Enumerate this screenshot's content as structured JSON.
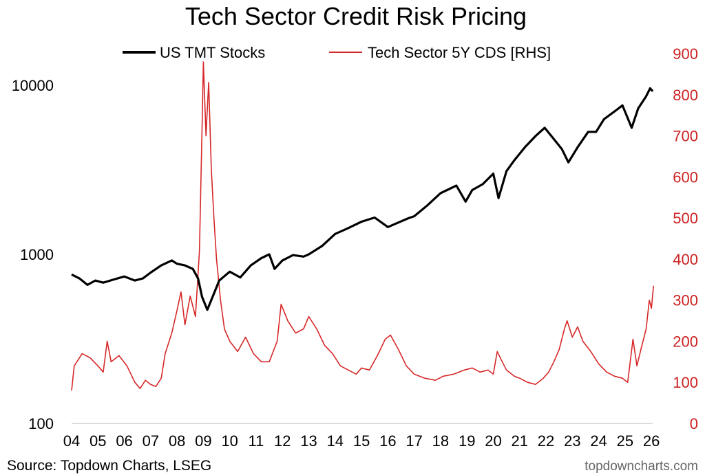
{
  "chart_data": {
    "type": "line",
    "title": "Tech Sector Credit Risk Pricing",
    "source": "Source: Topdown Charts, LSEG",
    "watermark": "topdowncharts.com",
    "x_range": [
      2004.0,
      2026.1
    ],
    "x_ticks": [
      {
        "value": 2004,
        "label": "04"
      },
      {
        "value": 2005,
        "label": "05"
      },
      {
        "value": 2006,
        "label": "06"
      },
      {
        "value": 2007,
        "label": "07"
      },
      {
        "value": 2008,
        "label": "08"
      },
      {
        "value": 2009,
        "label": "09"
      },
      {
        "value": 2010,
        "label": "10"
      },
      {
        "value": 2011,
        "label": "11"
      },
      {
        "value": 2012,
        "label": "12"
      },
      {
        "value": 2013,
        "label": "13"
      },
      {
        "value": 2014,
        "label": "14"
      },
      {
        "value": 2015,
        "label": "15"
      },
      {
        "value": 2016,
        "label": "16"
      },
      {
        "value": 2017,
        "label": "17"
      },
      {
        "value": 2018,
        "label": "18"
      },
      {
        "value": 2019,
        "label": "19"
      },
      {
        "value": 2020,
        "label": "20"
      },
      {
        "value": 2021,
        "label": "21"
      },
      {
        "value": 2022,
        "label": "22"
      },
      {
        "value": 2023,
        "label": "23"
      },
      {
        "value": 2024,
        "label": "24"
      },
      {
        "value": 2025,
        "label": "25"
      },
      {
        "value": 2026,
        "label": "26"
      }
    ],
    "y_left": {
      "scale": "log",
      "range": [
        100,
        18000
      ],
      "ticks": [
        {
          "value": 100,
          "label": "100"
        },
        {
          "value": 1000,
          "label": "1000"
        },
        {
          "value": 10000,
          "label": "10000"
        }
      ]
    },
    "y_right": {
      "scale": "linear",
      "range": [
        0,
        900
      ],
      "ticks": [
        {
          "value": 0,
          "label": "0"
        },
        {
          "value": 100,
          "label": "100"
        },
        {
          "value": 200,
          "label": "200"
        },
        {
          "value": 300,
          "label": "300"
        },
        {
          "value": 400,
          "label": "400"
        },
        {
          "value": 500,
          "label": "500"
        },
        {
          "value": 600,
          "label": "600"
        },
        {
          "value": 700,
          "label": "700"
        },
        {
          "value": 800,
          "label": "800"
        },
        {
          "value": 900,
          "label": "900"
        }
      ]
    },
    "series": [
      {
        "name": "US TMT Stocks",
        "axis": "left",
        "color": "#000000",
        "points": [
          [
            2004.0,
            760
          ],
          [
            2004.3,
            720
          ],
          [
            2004.6,
            660
          ],
          [
            2004.9,
            700
          ],
          [
            2005.2,
            680
          ],
          [
            2005.6,
            710
          ],
          [
            2006.0,
            740
          ],
          [
            2006.4,
            700
          ],
          [
            2006.7,
            720
          ],
          [
            2007.0,
            780
          ],
          [
            2007.4,
            860
          ],
          [
            2007.8,
            920
          ],
          [
            2008.0,
            880
          ],
          [
            2008.3,
            860
          ],
          [
            2008.6,
            820
          ],
          [
            2008.8,
            720
          ],
          [
            2008.95,
            560
          ],
          [
            2009.15,
            470
          ],
          [
            2009.35,
            560
          ],
          [
            2009.6,
            700
          ],
          [
            2010.0,
            790
          ],
          [
            2010.4,
            730
          ],
          [
            2010.8,
            860
          ],
          [
            2011.2,
            950
          ],
          [
            2011.5,
            1000
          ],
          [
            2011.7,
            820
          ],
          [
            2012.0,
            920
          ],
          [
            2012.4,
            990
          ],
          [
            2012.8,
            970
          ],
          [
            2013.0,
            1000
          ],
          [
            2013.5,
            1120
          ],
          [
            2014.0,
            1320
          ],
          [
            2014.5,
            1430
          ],
          [
            2015.0,
            1560
          ],
          [
            2015.5,
            1650
          ],
          [
            2016.0,
            1450
          ],
          [
            2016.3,
            1520
          ],
          [
            2016.8,
            1640
          ],
          [
            2017.0,
            1680
          ],
          [
            2017.5,
            1950
          ],
          [
            2018.0,
            2300
          ],
          [
            2018.6,
            2550
          ],
          [
            2018.95,
            2050
          ],
          [
            2019.2,
            2400
          ],
          [
            2019.6,
            2600
          ],
          [
            2020.0,
            3000
          ],
          [
            2020.2,
            2150
          ],
          [
            2020.5,
            3100
          ],
          [
            2020.8,
            3600
          ],
          [
            2021.2,
            4300
          ],
          [
            2021.6,
            5000
          ],
          [
            2021.95,
            5600
          ],
          [
            2022.3,
            4800
          ],
          [
            2022.6,
            4200
          ],
          [
            2022.85,
            3500
          ],
          [
            2023.2,
            4300
          ],
          [
            2023.6,
            5300
          ],
          [
            2023.9,
            5300
          ],
          [
            2024.2,
            6300
          ],
          [
            2024.6,
            7000
          ],
          [
            2024.9,
            7600
          ],
          [
            2025.25,
            5600
          ],
          [
            2025.5,
            7300
          ],
          [
            2025.8,
            8600
          ],
          [
            2025.95,
            9600
          ],
          [
            2026.05,
            9200
          ]
        ]
      },
      {
        "name": "Tech Sector 5Y CDS [RHS]",
        "axis": "right",
        "color": "#d62728",
        "points": [
          [
            2004.0,
            80
          ],
          [
            2004.1,
            140
          ],
          [
            2004.4,
            170
          ],
          [
            2004.7,
            160
          ],
          [
            2005.0,
            140
          ],
          [
            2005.2,
            125
          ],
          [
            2005.35,
            200
          ],
          [
            2005.5,
            150
          ],
          [
            2005.8,
            165
          ],
          [
            2006.1,
            140
          ],
          [
            2006.4,
            100
          ],
          [
            2006.6,
            85
          ],
          [
            2006.8,
            105
          ],
          [
            2007.0,
            95
          ],
          [
            2007.2,
            90
          ],
          [
            2007.4,
            110
          ],
          [
            2007.55,
            170
          ],
          [
            2007.8,
            220
          ],
          [
            2008.0,
            275
          ],
          [
            2008.15,
            320
          ],
          [
            2008.3,
            240
          ],
          [
            2008.5,
            310
          ],
          [
            2008.7,
            260
          ],
          [
            2008.85,
            420
          ],
          [
            2008.95,
            720
          ],
          [
            2009.0,
            880
          ],
          [
            2009.1,
            700
          ],
          [
            2009.2,
            830
          ],
          [
            2009.3,
            620
          ],
          [
            2009.4,
            500
          ],
          [
            2009.5,
            400
          ],
          [
            2009.65,
            300
          ],
          [
            2009.8,
            230
          ],
          [
            2010.0,
            200
          ],
          [
            2010.3,
            175
          ],
          [
            2010.6,
            210
          ],
          [
            2010.9,
            170
          ],
          [
            2011.2,
            150
          ],
          [
            2011.5,
            150
          ],
          [
            2011.8,
            200
          ],
          [
            2011.95,
            290
          ],
          [
            2012.2,
            250
          ],
          [
            2012.5,
            220
          ],
          [
            2012.8,
            230
          ],
          [
            2013.0,
            260
          ],
          [
            2013.3,
            230
          ],
          [
            2013.6,
            190
          ],
          [
            2013.9,
            170
          ],
          [
            2014.2,
            140
          ],
          [
            2014.5,
            130
          ],
          [
            2014.8,
            120
          ],
          [
            2015.0,
            135
          ],
          [
            2015.3,
            130
          ],
          [
            2015.6,
            165
          ],
          [
            2015.9,
            205
          ],
          [
            2016.1,
            215
          ],
          [
            2016.4,
            180
          ],
          [
            2016.7,
            140
          ],
          [
            2017.0,
            120
          ],
          [
            2017.4,
            110
          ],
          [
            2017.8,
            105
          ],
          [
            2018.1,
            115
          ],
          [
            2018.5,
            120
          ],
          [
            2018.9,
            130
          ],
          [
            2019.2,
            135
          ],
          [
            2019.5,
            125
          ],
          [
            2019.8,
            130
          ],
          [
            2020.0,
            120
          ],
          [
            2020.15,
            175
          ],
          [
            2020.3,
            155
          ],
          [
            2020.5,
            130
          ],
          [
            2020.8,
            115
          ],
          [
            2021.0,
            110
          ],
          [
            2021.3,
            100
          ],
          [
            2021.6,
            95
          ],
          [
            2021.9,
            110
          ],
          [
            2022.1,
            125
          ],
          [
            2022.3,
            150
          ],
          [
            2022.5,
            180
          ],
          [
            2022.7,
            230
          ],
          [
            2022.8,
            250
          ],
          [
            2023.0,
            210
          ],
          [
            2023.2,
            235
          ],
          [
            2023.4,
            200
          ],
          [
            2023.7,
            175
          ],
          [
            2024.0,
            145
          ],
          [
            2024.3,
            125
          ],
          [
            2024.6,
            115
          ],
          [
            2024.9,
            110
          ],
          [
            2025.1,
            100
          ],
          [
            2025.3,
            205
          ],
          [
            2025.45,
            140
          ],
          [
            2025.6,
            180
          ],
          [
            2025.8,
            230
          ],
          [
            2025.92,
            300
          ],
          [
            2026.0,
            280
          ],
          [
            2026.08,
            335
          ]
        ]
      }
    ]
  }
}
